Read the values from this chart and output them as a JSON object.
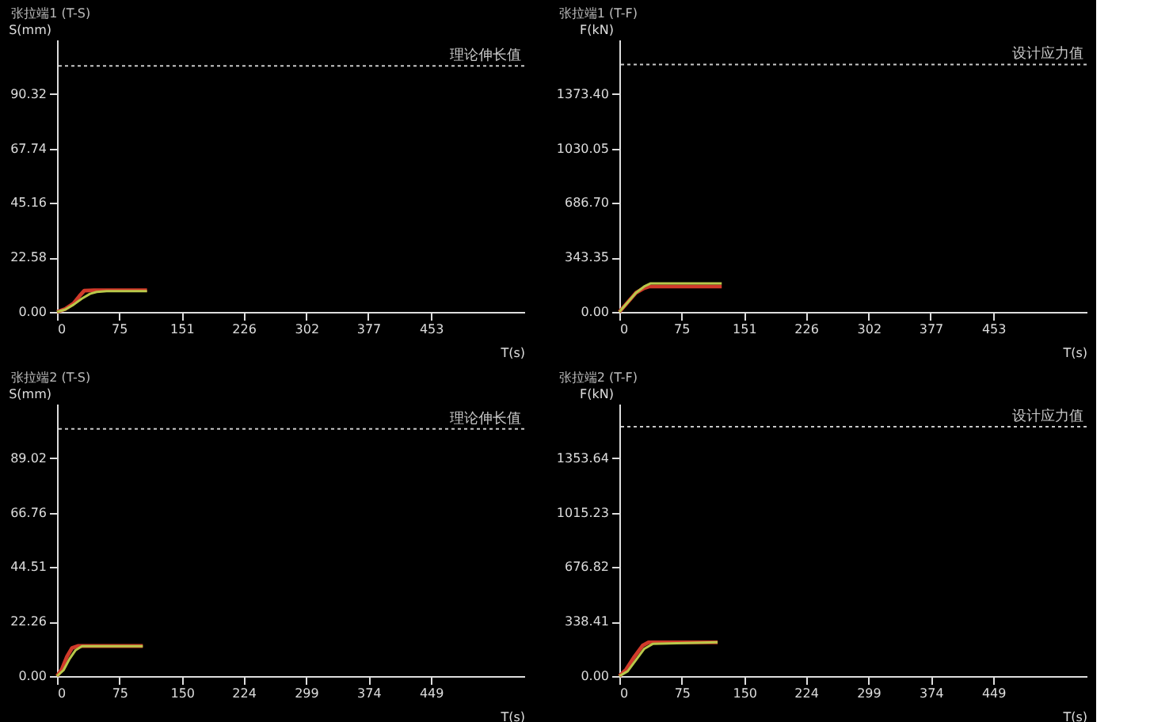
{
  "chart_data": [
    {
      "type": "line",
      "title": "张拉端1 (T-S)",
      "xlabel": "T(s)",
      "ylabel": "S(mm)",
      "xlim": [
        0,
        566
      ],
      "xticks": [
        0,
        75,
        151,
        226,
        302,
        377,
        453
      ],
      "ylim": [
        0,
        112.9
      ],
      "yticks": [
        {
          "value": 0,
          "label": "0.00"
        },
        22.58,
        45.16,
        67.74,
        90.32
      ],
      "legend": false,
      "grid": false,
      "ref_lines": [
        {
          "axis": "y",
          "value": 102,
          "label": "理论伸长值",
          "color": "#c8c8c8",
          "line_style": "dotted"
        }
      ],
      "series": [
        {
          "color": "#d03a2a",
          "x": [
            0,
            10,
            20,
            27,
            33,
            45,
            60,
            109
          ],
          "values": [
            0,
            1.2,
            3.5,
            6.5,
            8.8,
            9,
            9,
            9
          ]
        },
        {
          "color": "#b8c84a",
          "x": [
            0,
            10,
            20,
            30,
            40,
            48,
            60,
            109
          ],
          "values": [
            0,
            1,
            3,
            5.5,
            7.5,
            8.3,
            8.6,
            8.6
          ]
        }
      ]
    },
    {
      "type": "line",
      "title": "张拉端1 (T-F)",
      "xlabel": "T(s)",
      "ylabel": "F(kN)",
      "xlim": [
        0,
        566
      ],
      "xticks": [
        0,
        75,
        151,
        226,
        302,
        377,
        453
      ],
      "ylim": [
        0,
        1716.75
      ],
      "yticks": [
        {
          "value": 0,
          "label": "0.00"
        },
        343.35,
        {
          "value": 686.7,
          "label": "686.70"
        },
        1030.05,
        {
          "value": 1373.4,
          "label": "1373.40"
        }
      ],
      "legend": false,
      "grid": false,
      "ref_lines": [
        {
          "axis": "y",
          "value": 1560,
          "label": "设计应力值",
          "color": "#c8c8c8",
          "line_style": "dotted"
        }
      ],
      "series": [
        {
          "color": "#d03a2a",
          "x": [
            0,
            10,
            20,
            30,
            36,
            124
          ],
          "values": [
            0,
            60,
            120,
            150,
            160,
            160
          ]
        },
        {
          "color": "#b8c84a",
          "x": [
            0,
            10,
            20,
            30,
            38,
            124
          ],
          "values": [
            0,
            60,
            120,
            160,
            180,
            180
          ]
        }
      ]
    },
    {
      "type": "line",
      "title": "张拉端2 (T-S)",
      "xlabel": "T(s)",
      "ylabel": "S(mm)",
      "xlim": [
        0,
        561
      ],
      "xticks": [
        0,
        75,
        150,
        224,
        299,
        374,
        449
      ],
      "ylim": [
        0,
        111.3
      ],
      "yticks": [
        {
          "value": 0,
          "label": "0.00"
        },
        22.26,
        44.51,
        66.76,
        89.02
      ],
      "legend": false,
      "grid": false,
      "ref_lines": [
        {
          "axis": "y",
          "value": 101,
          "label": "理论伸长值",
          "color": "#c8c8c8",
          "line_style": "dotted"
        }
      ],
      "series": [
        {
          "color": "#d03a2a",
          "x": [
            0,
            6,
            12,
            18,
            25,
            103
          ],
          "values": [
            0,
            3,
            8,
            11.5,
            12.3,
            12.3
          ]
        },
        {
          "color": "#b8c84a",
          "x": [
            0,
            8,
            15,
            22,
            30,
            103
          ],
          "values": [
            0,
            2.5,
            7,
            10.5,
            12.2,
            12.2
          ]
        }
      ]
    },
    {
      "type": "line",
      "title": "张拉端2 (T-F)",
      "xlabel": "T(s)",
      "ylabel": "F(kN)",
      "xlim": [
        0,
        561
      ],
      "xticks": [
        0,
        75,
        150,
        224,
        299,
        374,
        449
      ],
      "ylim": [
        0,
        1692
      ],
      "yticks": [
        {
          "value": 0,
          "label": "0.00"
        },
        338.41,
        676.82,
        1015.23,
        1353.64
      ],
      "legend": false,
      "grid": false,
      "ref_lines": [
        {
          "axis": "y",
          "value": 1549,
          "label": "设计应力值",
          "color": "#c8c8c8",
          "line_style": "dotted"
        }
      ],
      "series": [
        {
          "color": "#d03a2a",
          "x": [
            0,
            8,
            18,
            28,
            35,
            118
          ],
          "values": [
            0,
            40,
            120,
            190,
            210,
            210
          ]
        },
        {
          "color": "#b8c84a",
          "x": [
            0,
            10,
            20,
            30,
            40,
            118
          ],
          "values": [
            0,
            30,
            100,
            170,
            200,
            210
          ]
        }
      ]
    }
  ]
}
